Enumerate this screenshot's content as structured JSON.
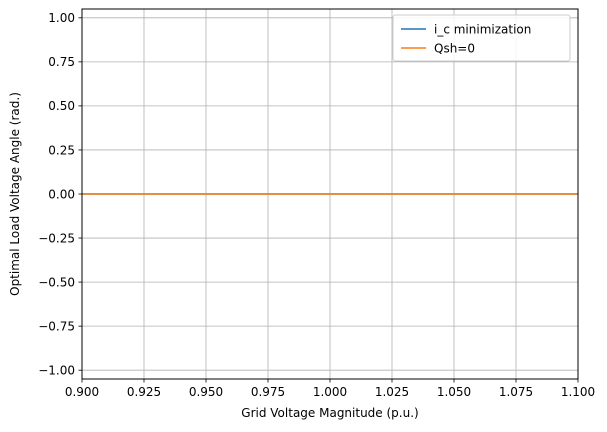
{
  "chart_data": {
    "type": "line",
    "title": "",
    "xlabel": "Grid Voltage Magnitude (p.u.)",
    "ylabel": "Optimal Load Voltage Angle (rad.)",
    "xlim": [
      0.9,
      1.1
    ],
    "ylim": [
      -1.05,
      1.05
    ],
    "xticks": [
      0.9,
      0.925,
      0.95,
      0.975,
      1.0,
      1.025,
      1.05,
      1.075,
      1.1
    ],
    "xtick_labels": [
      "0.900",
      "0.925",
      "0.950",
      "0.975",
      "1.000",
      "1.025",
      "1.050",
      "1.075",
      "1.100"
    ],
    "yticks": [
      -1.0,
      -0.75,
      -0.5,
      -0.25,
      0.0,
      0.25,
      0.5,
      0.75,
      1.0
    ],
    "ytick_labels": [
      "−1.00",
      "−0.75",
      "−0.50",
      "−0.25",
      "0.00",
      "0.25",
      "0.50",
      "0.75",
      "1.00"
    ],
    "grid": true,
    "legend_position": "top-right",
    "series": [
      {
        "name": "i_c minimization",
        "color": "#1f77b4",
        "x": [
          0.9,
          1.1
        ],
        "y": [
          0.0,
          0.0
        ]
      },
      {
        "name": "Qsh=0",
        "color": "#ff7f0e",
        "x": [
          0.9,
          1.1
        ],
        "y": [
          0.0,
          0.0
        ]
      }
    ]
  }
}
